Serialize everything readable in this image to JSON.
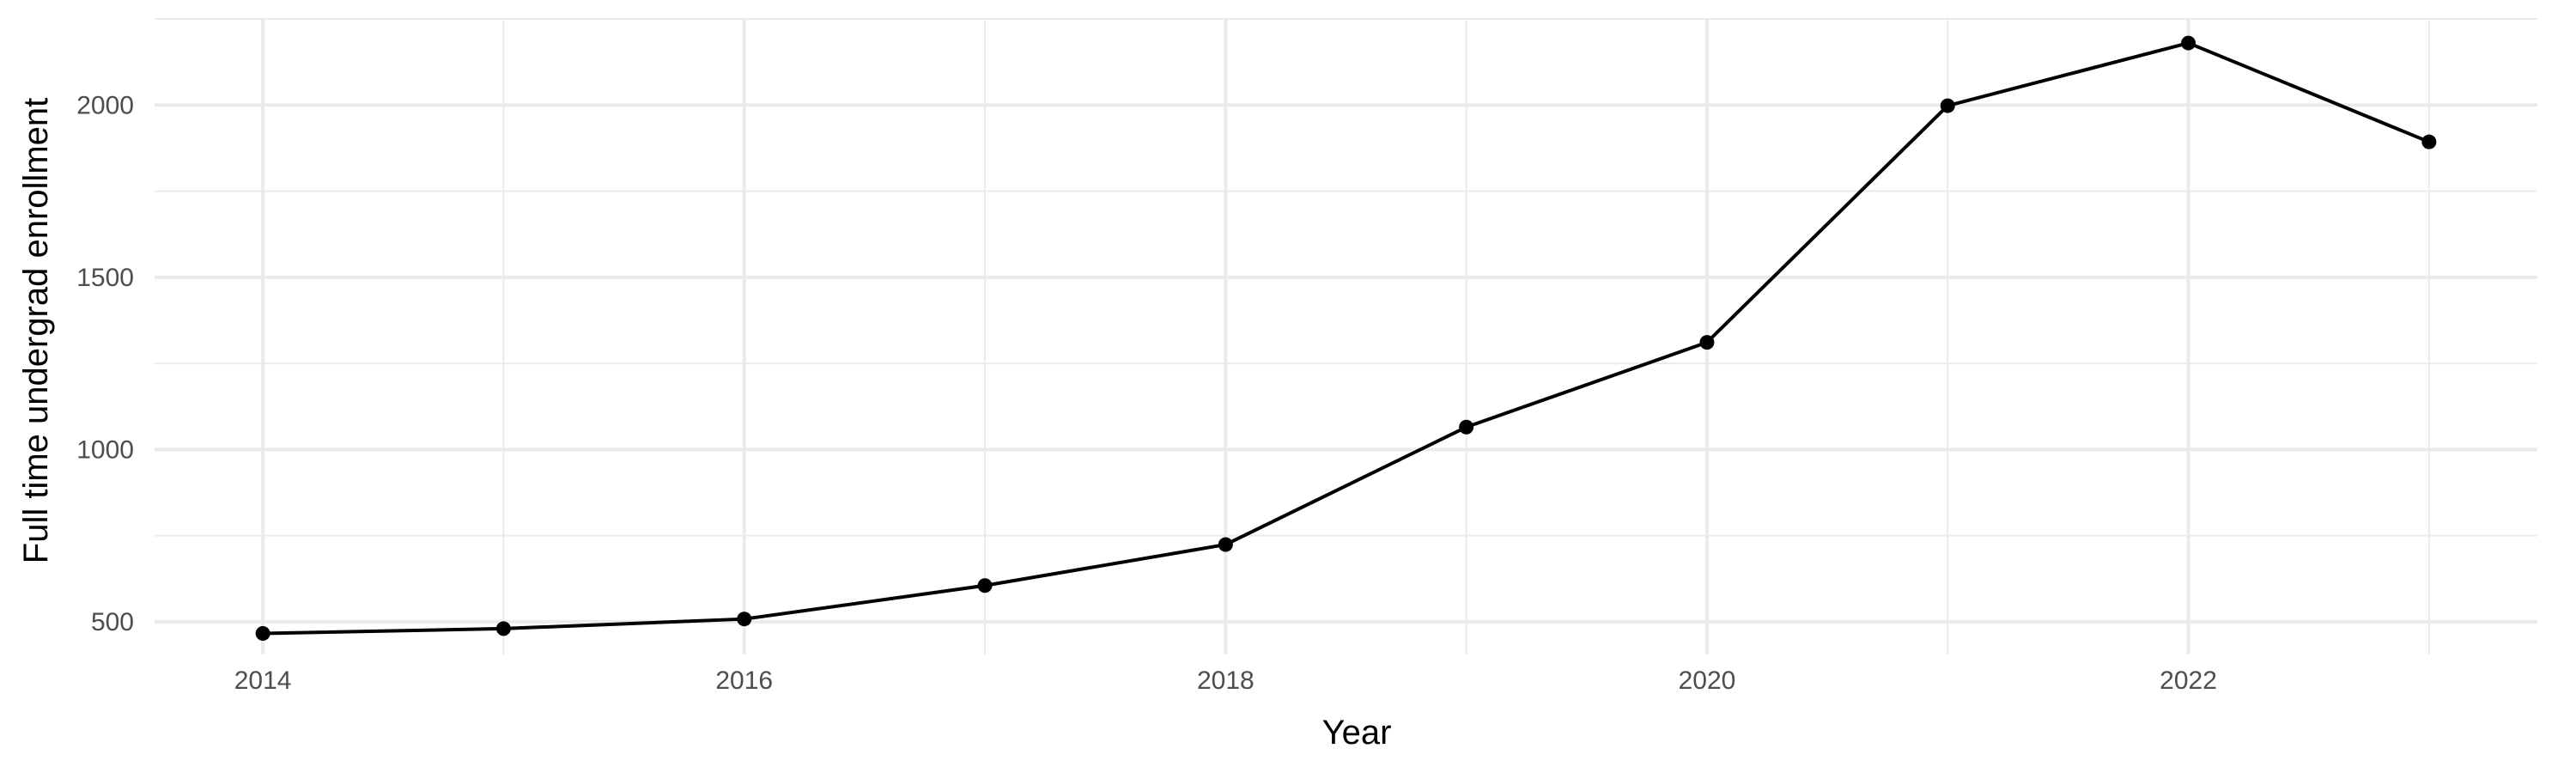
{
  "chart_data": {
    "type": "line",
    "title": "",
    "xlabel": "Year",
    "ylabel": "Full time undergrad enrollment",
    "x": [
      2014,
      2015,
      2016,
      2017,
      2018,
      2019,
      2020,
      2021,
      2022,
      2023
    ],
    "series": [
      {
        "values": [
          466,
          480,
          508,
          605,
          724,
          1065,
          1311,
          1998,
          2180,
          1893
        ]
      }
    ],
    "xlim": [
      2013.55,
      2023.45
    ],
    "ylim": [
      405,
      2250
    ],
    "x_ticks": [
      2014,
      2016,
      2018,
      2020,
      2022
    ],
    "x_tick_labels": [
      "2014",
      "2016",
      "2018",
      "2020",
      "2022"
    ],
    "y_ticks": [
      500,
      1000,
      1500,
      2000
    ],
    "y_tick_labels": [
      "500",
      "1000",
      "1500",
      "2000"
    ],
    "grid": true,
    "legend": "none",
    "colors": {
      "line": "#000000",
      "point": "#000000",
      "grid": "#ebebeb",
      "tick_text": "#4d4d4d"
    }
  }
}
